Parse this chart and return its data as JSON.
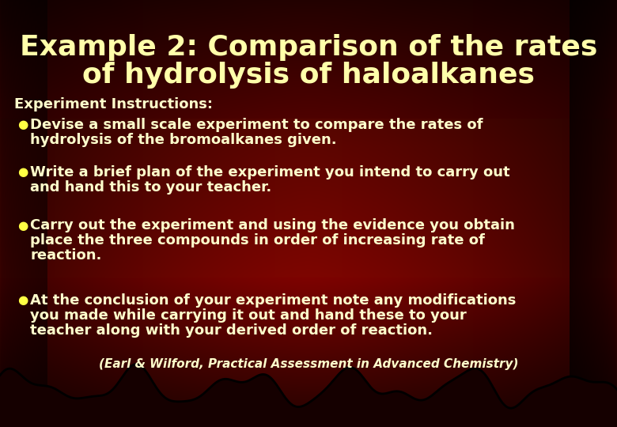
{
  "title_line1": "Example 2: Comparison of the rates",
  "title_line2": "of hydrolysis of haloalkanes",
  "title_color": "#FFFFAA",
  "title_fontsize": 26,
  "subheading": "Experiment Instructions:",
  "subheading_color": "#FFFFCC",
  "subheading_fontsize": 13,
  "bullet_color": "#FFFF44",
  "bullet_fontsize": 11,
  "text_color": "#FFFFCC",
  "text_fontsize": 13,
  "bullets": [
    [
      "Devise a small scale experiment to compare the rates of",
      "hydrolysis of the bromoalkanes given."
    ],
    [
      "Write a brief plan of the experiment you intend to carry out",
      "and hand this to your teacher."
    ],
    [
      "Carry out the experiment and using the evidence you obtain",
      "place the three compounds in order of increasing rate of",
      "reaction."
    ],
    [
      "At the conclusion of your experiment note any modifications",
      "you made while carrying it out and hand these to your",
      "teacher along with your derived order of reaction."
    ]
  ],
  "citation": "(Earl & Wilford, Practical Assessment in Advanced Chemistry)",
  "citation_color": "#FFFFCC",
  "citation_fontsize": 11
}
